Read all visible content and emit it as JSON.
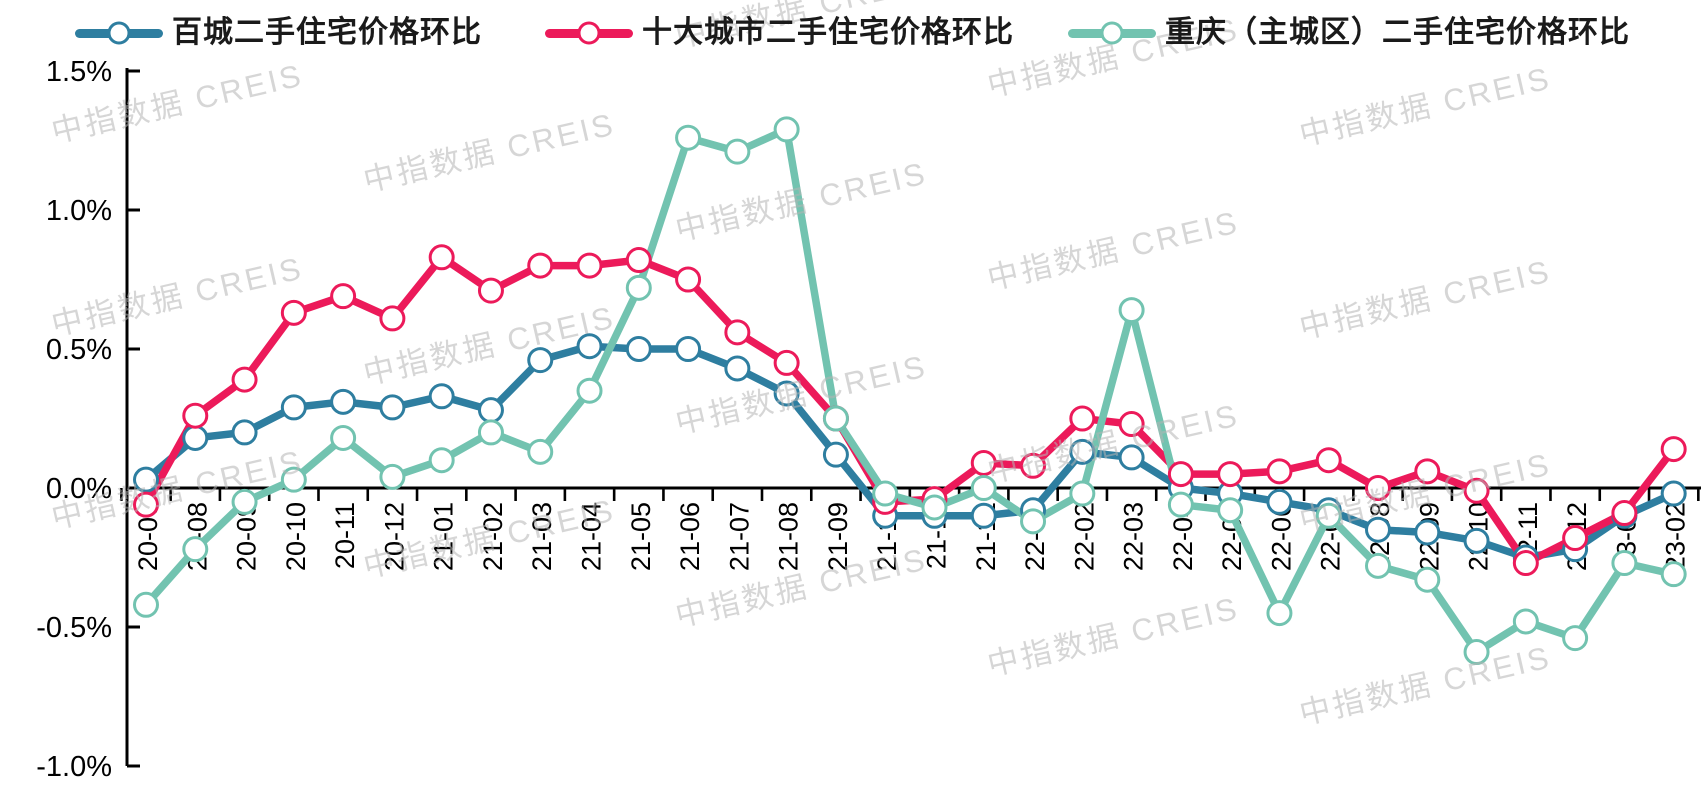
{
  "page": {
    "background": "#ffffff"
  },
  "watermark": {
    "text": "中指数据 CREIS"
  },
  "chart_data": {
    "type": "line",
    "legend_position": "top",
    "grid": false,
    "categories": [
      "20-07",
      "20-08",
      "20-09",
      "20-10",
      "20-11",
      "20-12",
      "21-01",
      "21-02",
      "21-03",
      "21-04",
      "21-05",
      "21-06",
      "21-07",
      "21-08",
      "21-09",
      "21-10",
      "21-11",
      "21-12",
      "22-01",
      "22-02",
      "22-03",
      "22-04",
      "22-05",
      "22-06",
      "22-07",
      "22-08",
      "22-09",
      "22-10",
      "22-11",
      "22-12",
      "23-01",
      "23-02"
    ],
    "series": [
      {
        "name": "百城二手住宅价格环比",
        "color": "#2E7EA0",
        "marker": "open-circle",
        "values": [
          0.03,
          0.18,
          0.2,
          0.29,
          0.31,
          0.29,
          0.33,
          0.28,
          0.46,
          0.51,
          0.5,
          0.5,
          0.43,
          0.34,
          0.12,
          -0.1,
          -0.1,
          -0.1,
          -0.08,
          0.13,
          0.11,
          0.0,
          -0.02,
          -0.05,
          -0.08,
          -0.15,
          -0.16,
          -0.19,
          -0.25,
          -0.22,
          -0.1,
          -0.02
        ]
      },
      {
        "name": "十大城市二手住宅价格环比",
        "color": "#EC1A5A",
        "marker": "open-circle",
        "values": [
          -0.06,
          0.26,
          0.39,
          0.63,
          0.69,
          0.61,
          0.83,
          0.71,
          0.8,
          0.8,
          0.82,
          0.75,
          0.56,
          0.45,
          0.25,
          -0.05,
          -0.04,
          0.09,
          0.08,
          0.25,
          0.23,
          0.05,
          0.05,
          0.06,
          0.1,
          0.0,
          0.06,
          -0.01,
          -0.27,
          -0.18,
          -0.09,
          0.14
        ]
      },
      {
        "name": "重庆（主城区）二手住宅价格环比",
        "color": "#72C3B0",
        "marker": "open-circle",
        "values": [
          -0.42,
          -0.22,
          -0.05,
          0.03,
          0.18,
          0.04,
          0.1,
          0.2,
          0.13,
          0.35,
          0.72,
          1.26,
          1.21,
          1.29,
          0.25,
          -0.02,
          -0.07,
          0.0,
          -0.12,
          -0.02,
          0.64,
          -0.06,
          -0.08,
          -0.45,
          -0.1,
          -0.28,
          -0.33,
          -0.59,
          -0.48,
          -0.54,
          -0.27,
          -0.31
        ]
      }
    ],
    "y_axis": {
      "unit": "%",
      "min": -1.0,
      "max": 1.5,
      "tick_values": [
        1.5,
        1.0,
        0.5,
        0.0,
        -0.5,
        -1.0
      ],
      "tick_labels": [
        "1.5%",
        "1.0%",
        "0.5%",
        "0.0%",
        "-0.5%",
        "-1.0%"
      ]
    },
    "x_axis": {
      "label_rotation": 90
    }
  }
}
